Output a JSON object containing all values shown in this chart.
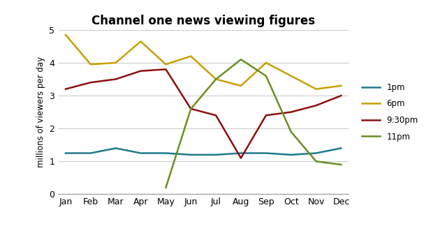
{
  "title": "Channel one news viewing figures",
  "ylabel": "millions of viewers per day",
  "months": [
    "Jan",
    "Feb",
    "Mar",
    "Apr",
    "May",
    "Jun",
    "Jul",
    "Aug",
    "Sep",
    "Oct",
    "Nov",
    "Dec"
  ],
  "series": {
    "1pm": {
      "values": [
        1.25,
        1.25,
        1.4,
        1.25,
        1.25,
        1.2,
        1.2,
        1.25,
        1.25,
        1.2,
        1.25,
        1.4
      ],
      "color": "#1f7a8c",
      "linewidth": 1.8
    },
    "6pm": {
      "values": [
        4.85,
        3.95,
        4.0,
        4.65,
        3.95,
        4.2,
        3.5,
        3.3,
        4.0,
        3.6,
        3.2,
        3.3
      ],
      "color": "#c8a000",
      "linewidth": 1.8
    },
    "9:30pm": {
      "values": [
        3.2,
        3.4,
        3.5,
        3.75,
        3.8,
        2.6,
        2.4,
        1.1,
        2.4,
        2.5,
        2.7,
        3.0
      ],
      "color": "#8b1010",
      "linewidth": 1.8
    },
    "11pm": {
      "values": [
        null,
        null,
        null,
        null,
        0.2,
        2.6,
        3.5,
        4.1,
        3.6,
        1.9,
        1.0,
        0.9
      ],
      "color": "#6b8e23",
      "linewidth": 1.8
    }
  },
  "ylim": [
    0,
    5
  ],
  "yticks": [
    0,
    1,
    2,
    3,
    4,
    5
  ],
  "legend_labels": [
    "1pm",
    "6pm",
    "9:30pm",
    "11pm"
  ],
  "background_color": "#ffffff",
  "grid_color": "#cccccc",
  "title_fontsize": 12,
  "label_fontsize": 8.5,
  "tick_fontsize": 9,
  "subtitle_fontsize": 8.5
}
